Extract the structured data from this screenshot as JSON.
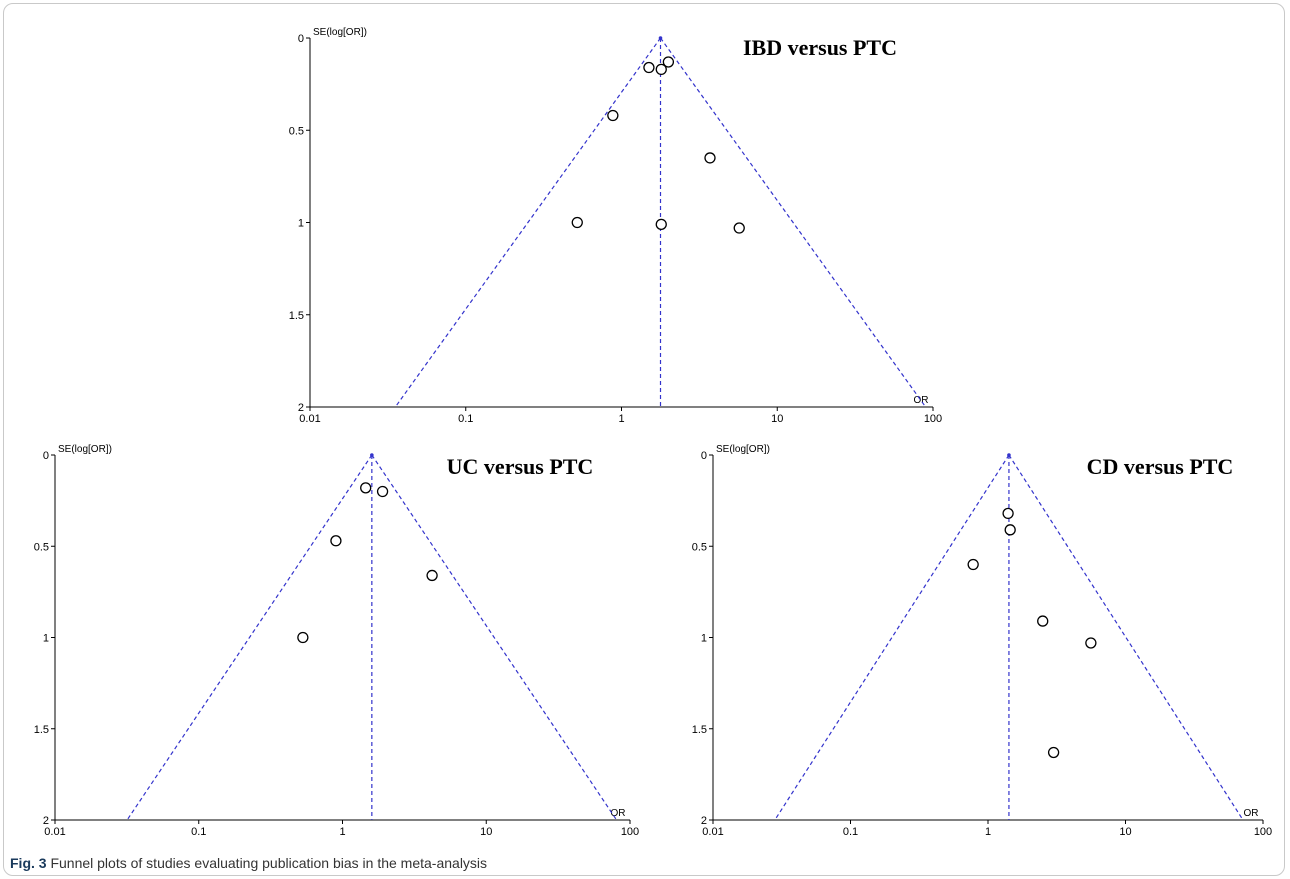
{
  "caption": {
    "label": "Fig. 3",
    "text": "Funnel plots of studies evaluating publication bias in the meta-analysis"
  },
  "colors": {
    "funnel_lines": "#3333cc",
    "points": "#000000",
    "axes": "#000000"
  },
  "chart_data": [
    {
      "type": "scatter",
      "title": "IBD versus PTC",
      "xlabel": "OR",
      "ylabel": "SE(log[OR])",
      "x_scale": "log",
      "xlim": [
        0.01,
        100
      ],
      "ylim": [
        0,
        2
      ],
      "y_inverted": true,
      "x_ticks": [
        "0.01",
        "0.1",
        "1",
        "10",
        "100"
      ],
      "y_ticks": [
        "0",
        "0.5",
        "1",
        "1.5",
        "2"
      ],
      "pooled_or": 1.78,
      "funnel": true,
      "points": [
        {
          "x": 1.5,
          "y": 0.16
        },
        {
          "x": 1.8,
          "y": 0.17
        },
        {
          "x": 2.0,
          "y": 0.13
        },
        {
          "x": 0.88,
          "y": 0.42
        },
        {
          "x": 3.7,
          "y": 0.65
        },
        {
          "x": 0.52,
          "y": 1.0
        },
        {
          "x": 1.8,
          "y": 1.01
        },
        {
          "x": 5.7,
          "y": 1.03
        }
      ]
    },
    {
      "type": "scatter",
      "title": "UC versus PTC",
      "xlabel": "OR",
      "ylabel": "SE(log[OR])",
      "x_scale": "log",
      "xlim": [
        0.01,
        100
      ],
      "ylim": [
        0,
        2
      ],
      "y_inverted": true,
      "x_ticks": [
        "0.01",
        "0.1",
        "1",
        "10",
        "100"
      ],
      "y_ticks": [
        "0",
        "0.5",
        "1",
        "1.5",
        "2"
      ],
      "pooled_or": 1.6,
      "funnel": true,
      "points": [
        {
          "x": 1.45,
          "y": 0.18
        },
        {
          "x": 1.9,
          "y": 0.2
        },
        {
          "x": 0.9,
          "y": 0.47
        },
        {
          "x": 4.2,
          "y": 0.66
        },
        {
          "x": 0.53,
          "y": 1.0
        }
      ]
    },
    {
      "type": "scatter",
      "title": "CD versus PTC",
      "xlabel": "OR",
      "ylabel": "SE(log[OR])",
      "x_scale": "log",
      "xlim": [
        0.01,
        100
      ],
      "ylim": [
        0,
        2
      ],
      "y_inverted": true,
      "x_ticks": [
        "0.01",
        "0.1",
        "1",
        "10",
        "100"
      ],
      "y_ticks": [
        "0",
        "0.5",
        "1",
        "1.5",
        "2"
      ],
      "pooled_or": 1.42,
      "funnel": true,
      "points": [
        {
          "x": 1.4,
          "y": 0.32
        },
        {
          "x": 1.45,
          "y": 0.41
        },
        {
          "x": 0.78,
          "y": 0.6
        },
        {
          "x": 2.5,
          "y": 0.91
        },
        {
          "x": 5.6,
          "y": 1.03
        },
        {
          "x": 3.0,
          "y": 1.63
        }
      ]
    }
  ]
}
